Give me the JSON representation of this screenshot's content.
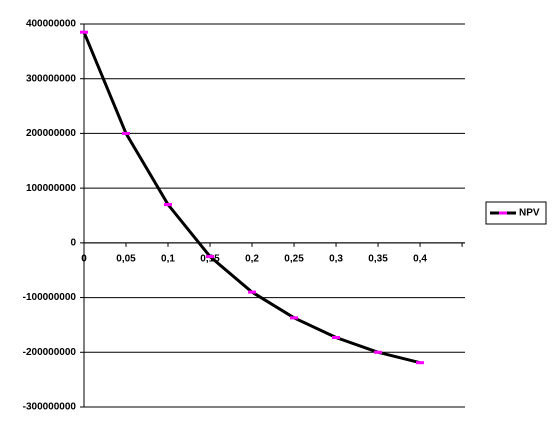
{
  "chart_data": {
    "type": "line",
    "categories": [
      "0",
      "0,05",
      "0,1",
      "0,15",
      "0,2",
      "0,25",
      "0,3",
      "0,35",
      "0,4",
      null
    ],
    "series": [
      {
        "name": "NPV",
        "color": "#000000",
        "marker_color": "#ff00ff",
        "values": [
          385000000,
          200000000,
          70000000,
          -25000000,
          -90000000,
          -137000000,
          -173000000,
          -200000000,
          -219000000,
          null
        ]
      }
    ],
    "ylim": [
      -300000000,
      400000000
    ],
    "yticks": [
      -300000000,
      -200000000,
      -100000000,
      0,
      100000000,
      200000000,
      300000000,
      400000000
    ],
    "grid": true,
    "legend": "right"
  }
}
